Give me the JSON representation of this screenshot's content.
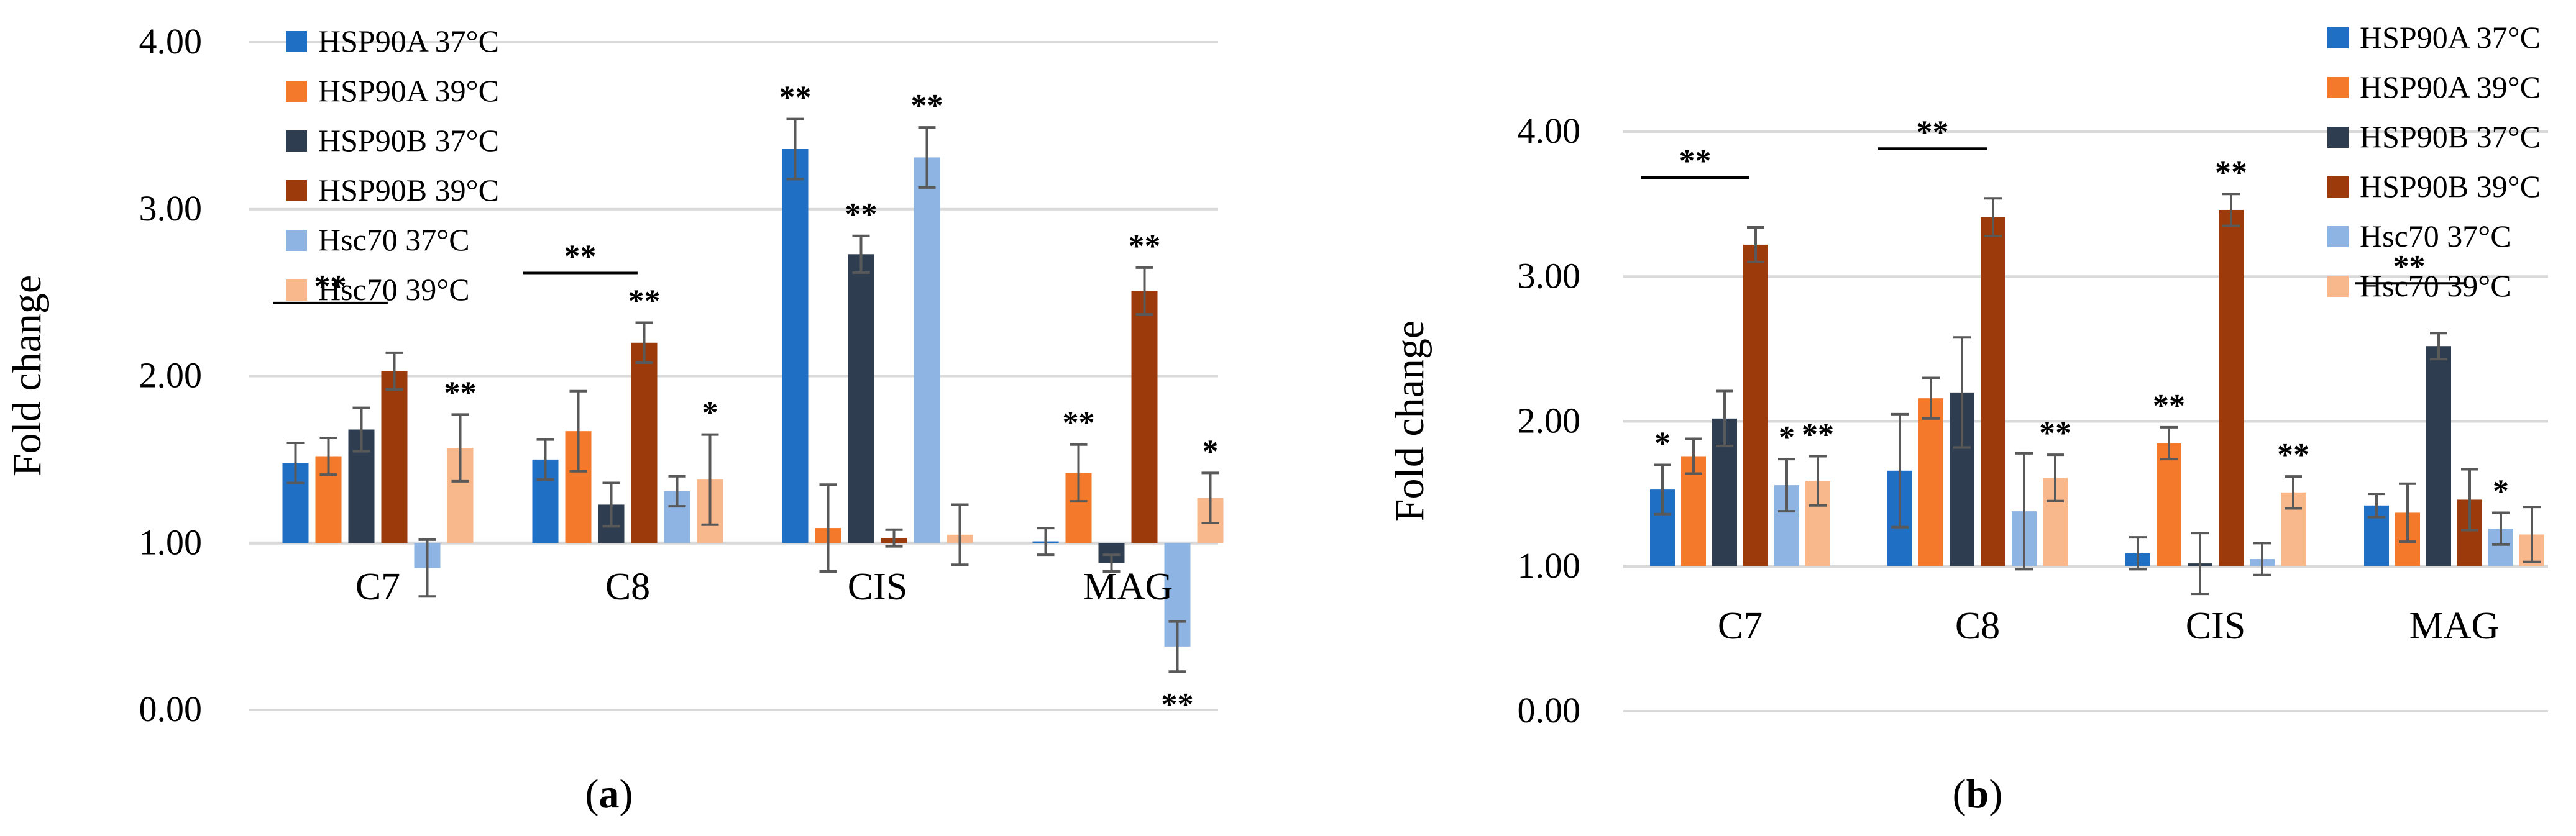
{
  "colors": {
    "s0": "#1f6fc5",
    "s1": "#f5792a",
    "s2": "#2e3e50",
    "s3": "#9c3a0c",
    "s4": "#8db4e2",
    "s5": "#f8b88b",
    "grid": "#d9d9d9",
    "error_bar": "#595959"
  },
  "chart_data": [
    {
      "type": "bar",
      "title": "(a)",
      "panel_letter": "a",
      "ylabel": "Fold change",
      "xlabel": "",
      "ylim": [
        0,
        4
      ],
      "yticks": [
        "0.00",
        "1.00",
        "2.00",
        "3.00",
        "4.00"
      ],
      "baseline": 1.0,
      "grid": true,
      "legend_position": "top-left",
      "categories": [
        "C7",
        "C8",
        "CIS",
        "MAG"
      ],
      "series": [
        {
          "name": "HSP90A 37°C",
          "values": [
            1.48,
            1.5,
            3.36,
            1.01
          ],
          "errors": [
            0.12,
            0.12,
            0.18,
            0.08
          ],
          "sig": [
            "",
            "",
            "**",
            ""
          ]
        },
        {
          "name": "HSP90A 39°C",
          "values": [
            1.52,
            1.67,
            1.09,
            1.42
          ],
          "errors": [
            0.11,
            0.24,
            0.26,
            0.17
          ],
          "sig": [
            "",
            "",
            "",
            "**"
          ]
        },
        {
          "name": "HSP90B 37°C",
          "values": [
            1.68,
            1.23,
            2.73,
            0.88
          ],
          "errors": [
            0.13,
            0.13,
            0.11,
            0.05
          ],
          "sig": [
            "",
            "",
            "**",
            ""
          ]
        },
        {
          "name": "HSP90B 39°C",
          "values": [
            2.03,
            2.2,
            1.03,
            2.51
          ],
          "errors": [
            0.11,
            0.12,
            0.05,
            0.14
          ],
          "sig": [
            "",
            "**",
            "",
            "**"
          ]
        },
        {
          "name": "Hsc70 37°C",
          "values": [
            0.85,
            1.31,
            3.31,
            0.38
          ],
          "errors": [
            0.17,
            0.09,
            0.18,
            0.15
          ],
          "sig": [
            "",
            "",
            "**",
            "**"
          ]
        },
        {
          "name": "Hsc70 39°C",
          "values": [
            1.57,
            1.38,
            1.05,
            1.27
          ],
          "errors": [
            0.2,
            0.27,
            0.18,
            0.15
          ],
          "sig": [
            "**",
            "*",
            "",
            "*"
          ]
        }
      ],
      "brackets": [
        {
          "category": "C7",
          "label": "**"
        },
        {
          "category": "C8",
          "label": "**"
        }
      ]
    },
    {
      "type": "bar",
      "title": "(b)",
      "panel_letter": "b",
      "ylabel": "Fold change",
      "xlabel": "",
      "ylim": [
        0,
        4
      ],
      "yticks": [
        "0.00",
        "1.00",
        "2.00",
        "3.00",
        "4.00"
      ],
      "baseline": 1.0,
      "grid": true,
      "legend_position": "top-right",
      "categories": [
        "C7",
        "C8",
        "CIS",
        "MAG"
      ],
      "series": [
        {
          "name": "HSP90A 37°C",
          "values": [
            1.53,
            1.66,
            1.09,
            1.42
          ],
          "errors": [
            0.17,
            0.39,
            0.11,
            0.08
          ],
          "sig": [
            "*",
            "",
            "",
            ""
          ]
        },
        {
          "name": "HSP90A 39°C",
          "values": [
            1.76,
            2.16,
            1.85,
            1.37
          ],
          "errors": [
            0.12,
            0.14,
            0.11,
            0.2
          ],
          "sig": [
            "",
            "",
            "**",
            ""
          ]
        },
        {
          "name": "HSP90B 37°C",
          "values": [
            2.02,
            2.2,
            1.02,
            2.52
          ],
          "errors": [
            0.19,
            0.38,
            0.21,
            0.09
          ],
          "sig": [
            "",
            "",
            "",
            ""
          ]
        },
        {
          "name": "HSP90B 39°C",
          "values": [
            3.22,
            3.41,
            3.46,
            1.46
          ],
          "errors": [
            0.12,
            0.13,
            0.11,
            0.21
          ],
          "sig": [
            "",
            "",
            "**",
            ""
          ]
        },
        {
          "name": "Hsc70 37°C",
          "values": [
            1.56,
            1.38,
            1.05,
            1.26
          ],
          "errors": [
            0.18,
            0.4,
            0.11,
            0.11
          ],
          "sig": [
            "*",
            "",
            "",
            "*"
          ]
        },
        {
          "name": "Hsc70 39°C",
          "values": [
            1.59,
            1.61,
            1.51,
            1.22
          ],
          "errors": [
            0.17,
            0.16,
            0.11,
            0.19
          ],
          "sig": [
            "**",
            "**",
            "**",
            ""
          ]
        }
      ],
      "brackets": [
        {
          "category": "C7",
          "label": "**"
        },
        {
          "category": "C8",
          "label": "**"
        },
        {
          "category": "MAG",
          "label": "**"
        }
      ]
    }
  ]
}
